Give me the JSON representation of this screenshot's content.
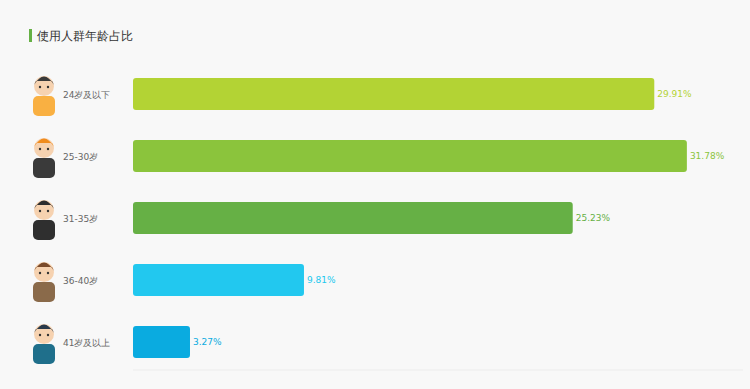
{
  "chart_data": {
    "type": "bar",
    "title": "使用人群年龄占比",
    "orientation": "horizontal",
    "categories": [
      "24岁及以下",
      "25-30岁",
      "31-35岁",
      "36-40岁",
      "41岁及以上"
    ],
    "values": [
      29.91,
      31.78,
      25.23,
      9.81,
      3.27
    ],
    "value_labels": [
      "29.91%",
      "31.78%",
      "25.23%",
      "9.81%",
      "3.27%"
    ],
    "colors": [
      "#b3d334",
      "#8bc43c",
      "#66b045",
      "#22c8ef",
      "#0aabe0"
    ],
    "xlim": [
      0,
      35
    ],
    "xticks": [],
    "data_labels": true,
    "tick_labels": false,
    "grid": false
  }
}
